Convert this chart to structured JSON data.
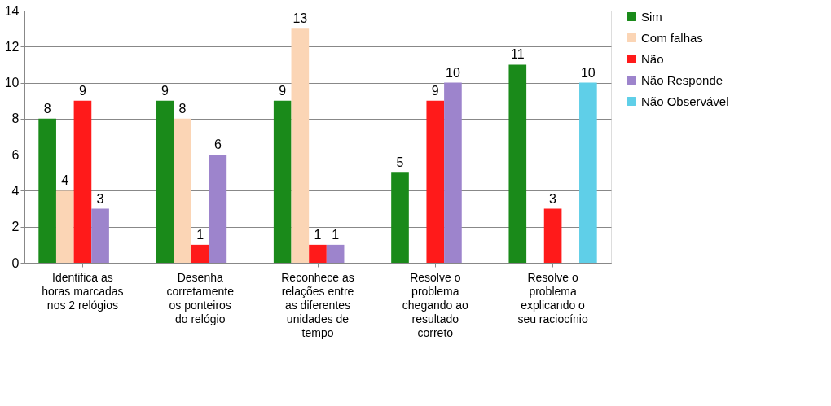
{
  "chart_data": {
    "type": "bar",
    "categories": [
      "Identifica as horas marcadas nos 2 relógios",
      "Desenha corretamente os ponteiros do relógio",
      "Reconhece as relações entre as diferentes unidades de tempo",
      "Resolve o problema chegando ao resultado correto",
      "Resolve o problema explicando o seu raciocínio"
    ],
    "series": [
      {
        "name": "Sim",
        "color": "#1a8a1a",
        "values": [
          8,
          9,
          9,
          5,
          11
        ]
      },
      {
        "name": "Com falhas",
        "color": "#fbd5b5",
        "values": [
          4,
          8,
          13,
          null,
          null
        ]
      },
      {
        "name": "Não",
        "color": "#ff1a1a",
        "values": [
          9,
          1,
          1,
          9,
          3
        ]
      },
      {
        "name": "Não Responde",
        "color": "#9d84cc",
        "values": [
          3,
          6,
          1,
          10,
          null
        ]
      },
      {
        "name": "Não Observável",
        "color": "#5fcfe8",
        "values": [
          null,
          null,
          null,
          null,
          10
        ]
      }
    ],
    "ylim": [
      0,
      14
    ],
    "yticks": [
      0,
      2,
      4,
      6,
      8,
      10,
      12,
      14
    ],
    "grid": "y",
    "legend": "right",
    "data_labels": true
  }
}
